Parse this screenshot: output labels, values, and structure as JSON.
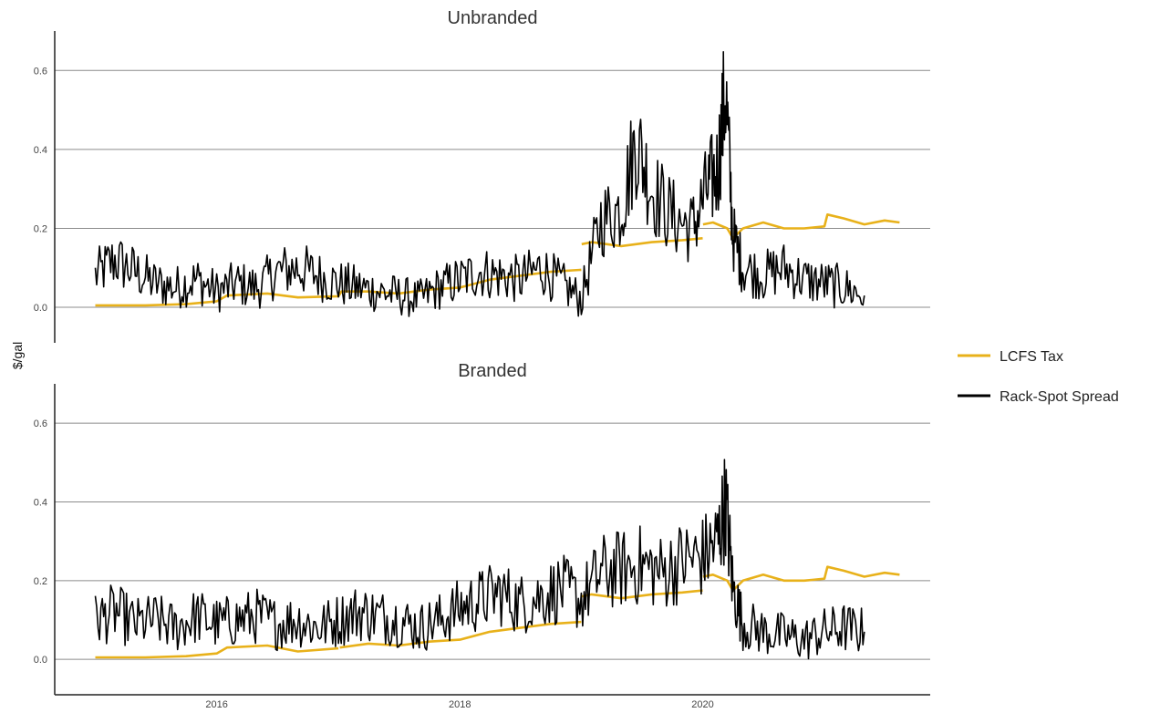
{
  "chart_data": {
    "type": "line",
    "ylabel": "$/gal",
    "ylim": [
      -0.09,
      0.7
    ],
    "y_ticks": [
      0.0,
      0.2,
      0.4,
      0.6
    ],
    "y_tick_labels": [
      "0.0",
      "0.2",
      "0.4",
      "0.6"
    ],
    "xlim": [
      "2014-09-01",
      "2021-11-15"
    ],
    "x_ticks": [
      "2016-01-01",
      "2018-01-01",
      "2020-01-01"
    ],
    "x_tick_labels": [
      "2016",
      "2018",
      "2020"
    ],
    "grid": "horizontal major lines",
    "legend_position": "right",
    "legend": [
      {
        "label": "LCFS Tax",
        "color": "#E8B11A"
      },
      {
        "label": "Rack-Spot Spread",
        "color": "#000000"
      }
    ],
    "panels": [
      {
        "title": "Unbranded",
        "series": [
          {
            "name": "LCFS Tax",
            "color": "#E8B11A",
            "segments": [
              {
                "x": [
                  "2015-01-01",
                  "2015-06-01",
                  "2015-10-01",
                  "2016-01-01",
                  "2016-02-01",
                  "2016-06-01",
                  "2016-09-01",
                  "2017-01-01",
                  "2017-01-10",
                  "2017-04-01",
                  "2017-07-01",
                  "2017-10-01",
                  "2018-01-01",
                  "2018-04-01",
                  "2018-07-01",
                  "2018-10-01",
                  "2019-01-01"
                ],
                "y": [
                  0.005,
                  0.005,
                  0.008,
                  0.015,
                  0.03,
                  0.035,
                  0.025,
                  0.028,
                  0.04,
                  0.04,
                  0.035,
                  0.045,
                  0.05,
                  0.07,
                  0.08,
                  0.09,
                  0.095
                ]
              },
              {
                "x": [
                  "2019-01-02",
                  "2019-02-01",
                  "2019-05-01",
                  "2019-08-01",
                  "2019-11-01",
                  "2020-01-01"
                ],
                "y": [
                  0.16,
                  0.165,
                  0.155,
                  0.165,
                  0.17,
                  0.175
                ]
              },
              {
                "x": [
                  "2020-01-02",
                  "2020-02-01",
                  "2020-03-15",
                  "2020-04-01",
                  "2020-05-01",
                  "2020-07-01",
                  "2020-09-01",
                  "2020-11-01",
                  "2021-01-01",
                  "2021-01-10",
                  "2021-03-01",
                  "2021-05-01",
                  "2021-07-01",
                  "2021-08-15"
                ],
                "y": [
                  0.21,
                  0.215,
                  0.2,
                  0.175,
                  0.2,
                  0.215,
                  0.2,
                  0.2,
                  0.205,
                  0.235,
                  0.225,
                  0.21,
                  0.22,
                  0.215
                ]
              }
            ]
          },
          {
            "name": "Rack-Spot Spread",
            "color": "#000000",
            "segments": [
              {
                "x": [
                  "2015-01-01",
                  "2015-03-01",
                  "2015-05-01",
                  "2015-07-01",
                  "2015-09-01",
                  "2015-11-01",
                  "2016-01-01",
                  "2016-03-01",
                  "2016-05-01",
                  "2016-07-01",
                  "2016-09-01",
                  "2016-11-01",
                  "2017-01-01",
                  "2017-03-01",
                  "2017-05-01",
                  "2017-07-01",
                  "2017-09-01",
                  "2017-11-01",
                  "2018-01-01",
                  "2018-03-01",
                  "2018-05-01",
                  "2018-07-01",
                  "2018-09-01",
                  "2018-11-01",
                  "2019-01-01",
                  "2019-03-01",
                  "2019-05-01",
                  "2019-06-15",
                  "2019-08-01",
                  "2019-10-01",
                  "2019-12-01",
                  "2020-01-15",
                  "2020-02-15",
                  "2020-03-10",
                  "2020-04-01",
                  "2020-05-01",
                  "2020-07-01",
                  "2020-09-01",
                  "2020-11-01",
                  "2021-01-01",
                  "2021-03-01",
                  "2021-05-01"
                ],
                "y": [
                  0.08,
                  0.12,
                  0.09,
                  0.06,
                  0.05,
                  0.07,
                  0.04,
                  0.06,
                  0.05,
                  0.09,
                  0.1,
                  0.08,
                  0.06,
                  0.05,
                  0.04,
                  0.03,
                  0.02,
                  0.05,
                  0.07,
                  0.09,
                  0.08,
                  0.07,
                  0.1,
                  0.06,
                  0.02,
                  0.22,
                  0.25,
                  0.42,
                  0.3,
                  0.23,
                  0.2,
                  0.3,
                  0.35,
                  0.55,
                  0.18,
                  0.1,
                  0.08,
                  0.1,
                  0.07,
                  0.06,
                  0.05,
                  0.03
                ]
              }
            ]
          }
        ]
      },
      {
        "title": "Branded",
        "series": [
          {
            "name": "LCFS Tax",
            "color": "#E8B11A",
            "segments": [
              {
                "x": [
                  "2015-01-01",
                  "2015-06-01",
                  "2015-10-01",
                  "2016-01-01",
                  "2016-02-01",
                  "2016-06-01",
                  "2016-09-01",
                  "2017-01-01"
                ],
                "y": [
                  0.005,
                  0.005,
                  0.008,
                  0.015,
                  0.03,
                  0.035,
                  0.02,
                  0.028
                ]
              },
              {
                "x": [
                  "2017-01-05",
                  "2017-04-01",
                  "2017-07-01",
                  "2017-10-01",
                  "2018-01-01",
                  "2018-04-01",
                  "2018-07-01",
                  "2018-10-01",
                  "2019-01-01"
                ],
                "y": [
                  0.03,
                  0.04,
                  0.035,
                  0.045,
                  0.05,
                  0.07,
                  0.08,
                  0.09,
                  0.095
                ]
              },
              {
                "x": [
                  "2019-01-02",
                  "2019-02-01",
                  "2019-05-01",
                  "2019-08-01",
                  "2019-11-01",
                  "2020-01-01"
                ],
                "y": [
                  0.16,
                  0.165,
                  0.155,
                  0.165,
                  0.17,
                  0.175
                ]
              },
              {
                "x": [
                  "2020-01-02",
                  "2020-02-01",
                  "2020-03-15",
                  "2020-04-01",
                  "2020-05-01",
                  "2020-07-01",
                  "2020-09-01",
                  "2020-11-01",
                  "2021-01-01",
                  "2021-01-10",
                  "2021-03-01",
                  "2021-05-01",
                  "2021-07-01",
                  "2021-08-15"
                ],
                "y": [
                  0.21,
                  0.215,
                  0.2,
                  0.175,
                  0.2,
                  0.215,
                  0.2,
                  0.2,
                  0.205,
                  0.235,
                  0.225,
                  0.21,
                  0.22,
                  0.215
                ]
              }
            ]
          },
          {
            "name": "Rack-Spot Spread",
            "color": "#000000",
            "segments": [
              {
                "x": [
                  "2015-01-01",
                  "2015-03-01",
                  "2015-05-01",
                  "2015-07-01",
                  "2015-09-01",
                  "2015-11-01",
                  "2016-01-01",
                  "2016-03-01",
                  "2016-05-01",
                  "2016-07-01",
                  "2016-09-01",
                  "2016-11-01",
                  "2017-01-01",
                  "2017-03-01",
                  "2017-05-01",
                  "2017-07-01",
                  "2017-09-01",
                  "2017-11-01",
                  "2018-01-01",
                  "2018-03-01",
                  "2018-05-01",
                  "2018-07-01",
                  "2018-09-01",
                  "2018-11-01",
                  "2019-01-01",
                  "2019-03-01",
                  "2019-05-01",
                  "2019-07-01",
                  "2019-09-01",
                  "2019-11-01",
                  "2020-01-01",
                  "2020-02-15",
                  "2020-03-10",
                  "2020-04-01",
                  "2020-05-01",
                  "2020-07-01",
                  "2020-09-01",
                  "2020-11-01",
                  "2021-01-01",
                  "2021-03-01",
                  "2021-05-01"
                ],
                "y": [
                  0.1,
                  0.12,
                  0.09,
                  0.1,
                  0.08,
                  0.11,
                  0.09,
                  0.1,
                  0.11,
                  0.09,
                  0.1,
                  0.08,
                  0.1,
                  0.12,
                  0.11,
                  0.1,
                  0.08,
                  0.1,
                  0.13,
                  0.15,
                  0.17,
                  0.14,
                  0.16,
                  0.18,
                  0.15,
                  0.22,
                  0.23,
                  0.24,
                  0.22,
                  0.25,
                  0.26,
                  0.3,
                  0.4,
                  0.18,
                  0.09,
                  0.07,
                  0.06,
                  0.05,
                  0.07,
                  0.08,
                  0.07
                ]
              }
            ]
          }
        ]
      }
    ]
  }
}
